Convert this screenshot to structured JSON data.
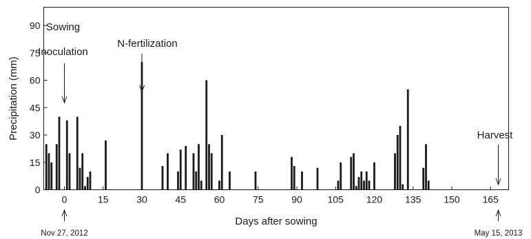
{
  "chart_data": {
    "type": "bar",
    "xlabel": "Days after sowing",
    "ylabel": "Precipitation (mm)",
    "xlim": [
      -8,
      172
    ],
    "ylim": [
      0,
      100
    ],
    "xticks": [
      0,
      15,
      30,
      45,
      60,
      75,
      90,
      105,
      120,
      135,
      150,
      165
    ],
    "yticks": [
      0,
      15,
      30,
      45,
      60,
      75,
      90
    ],
    "grid": false,
    "bar_color": "#1a1a1a",
    "x": [
      -7,
      -6,
      -5,
      -3,
      -2,
      1,
      2,
      5,
      6,
      7,
      8,
      9,
      10,
      16,
      30,
      38,
      40,
      44,
      45,
      47,
      50,
      51,
      52,
      53,
      55,
      56,
      57,
      60,
      61,
      64,
      74,
      88,
      89,
      92,
      98,
      106,
      107,
      111,
      112,
      113,
      114,
      115,
      116,
      117,
      118,
      120,
      128,
      129,
      130,
      131,
      133,
      139,
      140,
      141
    ],
    "values": [
      25,
      20,
      15,
      25,
      40,
      38,
      20,
      40,
      12,
      20,
      2,
      7,
      10,
      27,
      70,
      13,
      20,
      10,
      22,
      24,
      20,
      10,
      25,
      5,
      60,
      25,
      20,
      5,
      30,
      10,
      10,
      18,
      13,
      10,
      12,
      5,
      15,
      18,
      20,
      2,
      7,
      10,
      5,
      10,
      5,
      15,
      20,
      30,
      35,
      3,
      55,
      12,
      25,
      5
    ],
    "annotations": [
      {
        "lines": [
          "Sowing",
          "Inoculation"
        ],
        "x": 0
      },
      {
        "lines": [
          "N-fertilization"
        ],
        "x": 30
      },
      {
        "lines": [
          "Harvest"
        ],
        "x": 168
      }
    ],
    "date_labels": [
      {
        "text": "Nov 27, 2012",
        "x": 0
      },
      {
        "text": "May 15, 2013",
        "x": 168
      }
    ]
  }
}
